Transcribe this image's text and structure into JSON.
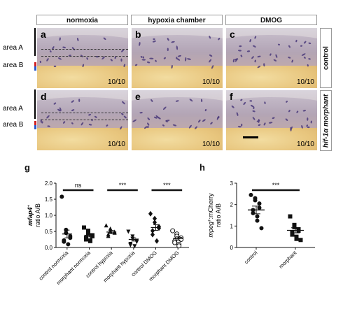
{
  "columns": [
    "normoxia",
    "hypoxia chamber",
    "DMOG"
  ],
  "rows": [
    "control",
    "hif-1α morphant"
  ],
  "panels": [
    {
      "label": "a",
      "count": "10/10"
    },
    {
      "label": "b",
      "count": "10/10"
    },
    {
      "label": "c",
      "count": "10/10"
    },
    {
      "label": "d",
      "count": "10/10"
    },
    {
      "label": "e",
      "count": "10/10"
    },
    {
      "label": "f",
      "count": "10/10"
    }
  ],
  "area_labels": {
    "a": "area A",
    "b": "area B"
  },
  "panel_g_label": "g",
  "panel_h_label": "h",
  "colors": {
    "cell_stain": "#4a3a7a",
    "area_a_marker": "#2a59c9",
    "area_b_marker": "#d02020"
  },
  "chart_data": [
    {
      "type": "scatter",
      "panel": "g",
      "ylabel_gene": "mfap4",
      "ylabel_sup": "+",
      "ylabel_rest": "ratio A/B",
      "ylim": [
        0,
        2.0
      ],
      "yticks": [
        "0.0",
        "0.5",
        "1.0",
        "1.5",
        "2.0"
      ],
      "categories": [
        "control normoxia",
        "morphant normoxia",
        "control hypoxia",
        "morphant hypoxia",
        "control DMOG",
        "morphant DMOG"
      ],
      "markers": [
        "circle",
        "square",
        "triangle",
        "triangle-down",
        "diamond",
        "circle-open"
      ],
      "means": [
        0.42,
        0.38,
        0.48,
        0.25,
        0.62,
        0.28
      ],
      "sem": [
        0.12,
        0.05,
        0.05,
        0.05,
        0.09,
        0.05
      ],
      "points": [
        [
          1.58,
          0.55,
          0.45,
          0.35,
          0.3,
          0.22,
          0.18,
          0.1
        ],
        [
          0.62,
          0.52,
          0.42,
          0.38,
          0.35,
          0.3,
          0.25,
          0.22,
          0.2
        ],
        [
          0.68,
          0.58,
          0.5,
          0.48,
          0.45,
          0.4,
          0.35
        ],
        [
          0.5,
          0.35,
          0.28,
          0.22,
          0.18,
          0.12,
          0.08,
          0.05
        ],
        [
          1.05,
          0.9,
          0.78,
          0.65,
          0.6,
          0.52,
          0.4,
          0.2
        ],
        [
          0.52,
          0.42,
          0.35,
          0.3,
          0.25,
          0.2,
          0.15,
          0.1,
          0.05
        ]
      ],
      "significance": [
        {
          "pair": [
            0,
            1
          ],
          "label": "ns"
        },
        {
          "pair": [
            2,
            3
          ],
          "label": "***"
        },
        {
          "pair": [
            4,
            5
          ],
          "label": "***"
        }
      ]
    },
    {
      "type": "scatter",
      "panel": "h",
      "ylabel_gene": "mpeg",
      "ylabel_sup": "+",
      "ylabel_rest": ":mCherry",
      "ylabel_line2": "ratio A/B",
      "ylim": [
        0,
        3
      ],
      "yticks": [
        "0",
        "1",
        "2",
        "3"
      ],
      "categories": [
        "control",
        "morphant"
      ],
      "markers": [
        "circle-filled",
        "square"
      ],
      "means": [
        1.75,
        0.8
      ],
      "sem": [
        0.18,
        0.12
      ],
      "points": [
        [
          2.45,
          2.3,
          2.2,
          2.05,
          1.85,
          1.75,
          1.6,
          1.45,
          1.25,
          0.9
        ],
        [
          1.45,
          1.05,
          0.95,
          0.85,
          0.78,
          0.7,
          0.6,
          0.5,
          0.4,
          0.35
        ]
      ],
      "significance": [
        {
          "pair": [
            0,
            1
          ],
          "label": "***"
        }
      ]
    }
  ]
}
